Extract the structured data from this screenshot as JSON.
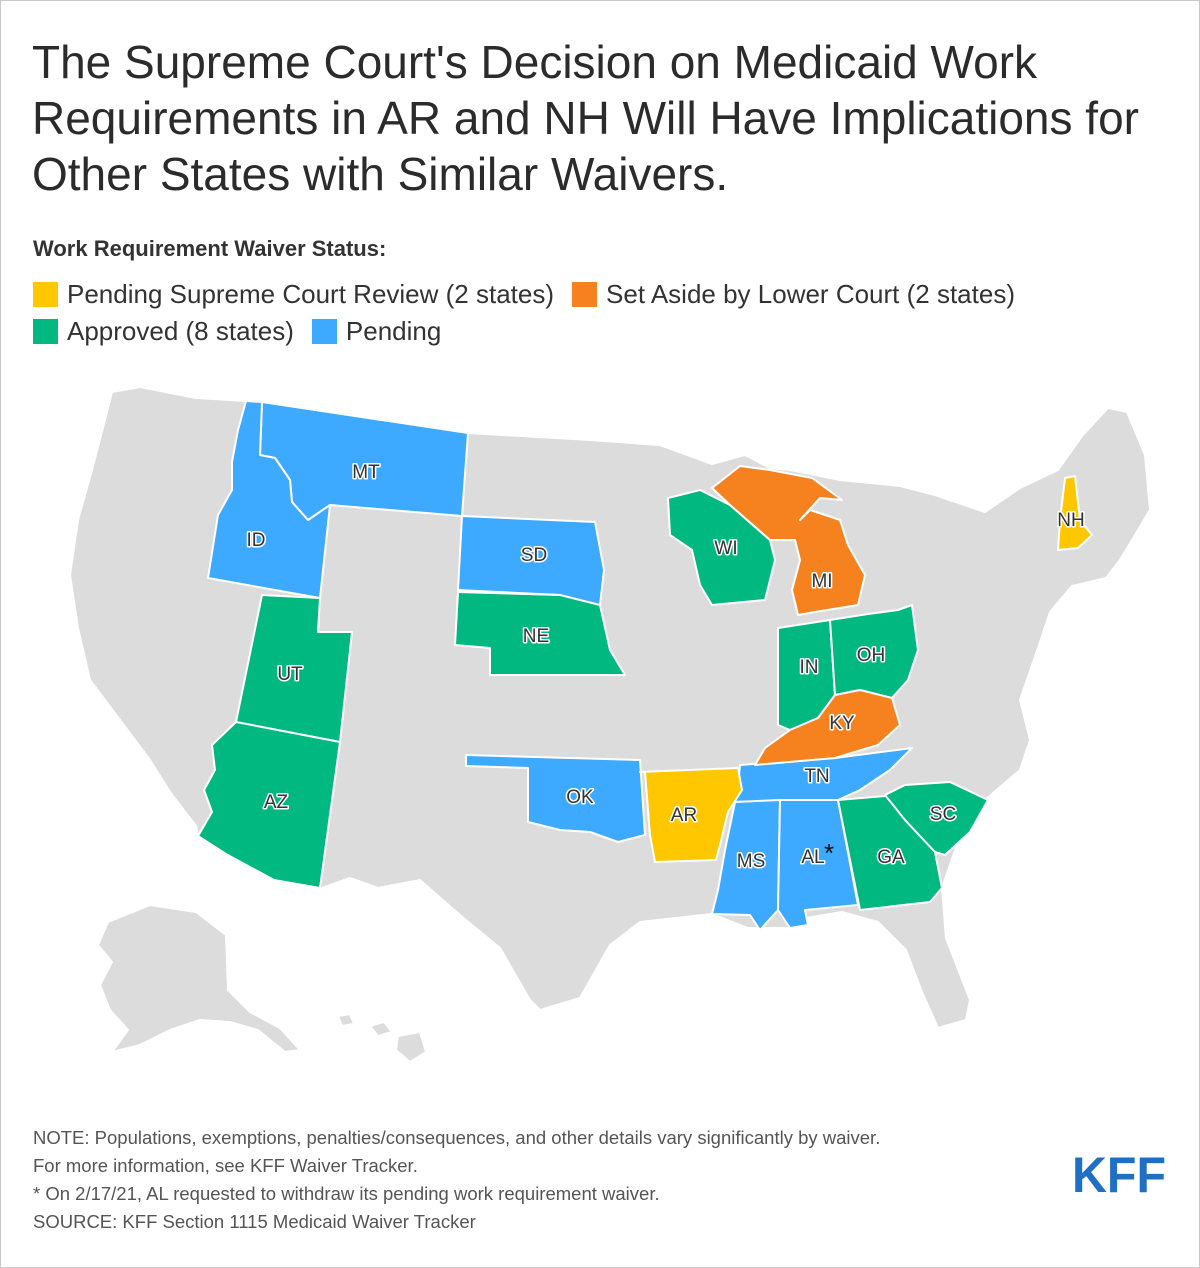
{
  "title": "The Supreme Court's Decision on Medicaid Work Requirements in AR and NH Will Have Implications for Other States with Similar Waivers.",
  "legend": {
    "heading": "Work Requirement Waiver Status:",
    "items": [
      {
        "key": "pending_scotus",
        "label": "Pending Supreme Court Review (2 states)",
        "color": "#FFC700"
      },
      {
        "key": "set_aside",
        "label": "Set Aside by Lower Court (2 states)",
        "color": "#F5821F"
      },
      {
        "key": "approved",
        "label": "Approved (8 states)",
        "color": "#00B880"
      },
      {
        "key": "pending",
        "label": "Pending",
        "color": "#3DA9FF"
      }
    ]
  },
  "colors": {
    "no_waiver": "#DCDCDC",
    "state_border": "#FFFFFF",
    "brand": "#1F6FC5"
  },
  "states": [
    {
      "abbr": "MT",
      "status": "pending"
    },
    {
      "abbr": "ID",
      "status": "pending"
    },
    {
      "abbr": "SD",
      "status": "pending"
    },
    {
      "abbr": "OK",
      "status": "pending"
    },
    {
      "abbr": "TN",
      "status": "pending"
    },
    {
      "abbr": "MS",
      "status": "pending"
    },
    {
      "abbr": "AL",
      "status": "pending",
      "asterisk": "*"
    },
    {
      "abbr": "UT",
      "status": "approved"
    },
    {
      "abbr": "AZ",
      "status": "approved"
    },
    {
      "abbr": "NE",
      "status": "approved"
    },
    {
      "abbr": "WI",
      "status": "approved"
    },
    {
      "abbr": "IN",
      "status": "approved"
    },
    {
      "abbr": "OH",
      "status": "approved"
    },
    {
      "abbr": "GA",
      "status": "approved"
    },
    {
      "abbr": "SC",
      "status": "approved"
    },
    {
      "abbr": "MI",
      "status": "set_aside"
    },
    {
      "abbr": "KY",
      "status": "set_aside"
    },
    {
      "abbr": "AR",
      "status": "pending_scotus"
    },
    {
      "abbr": "NH",
      "status": "pending_scotus"
    }
  ],
  "notes": [
    "NOTE: Populations, exemptions, penalties/consequences, and other details vary significantly by waiver.",
    "For more information, see KFF Waiver Tracker.",
    "* On 2/17/21, AL requested to withdraw its pending work requirement waiver.",
    "SOURCE: KFF Section 1115 Medicaid Waiver Tracker"
  ],
  "logo": {
    "text": "KFF"
  }
}
